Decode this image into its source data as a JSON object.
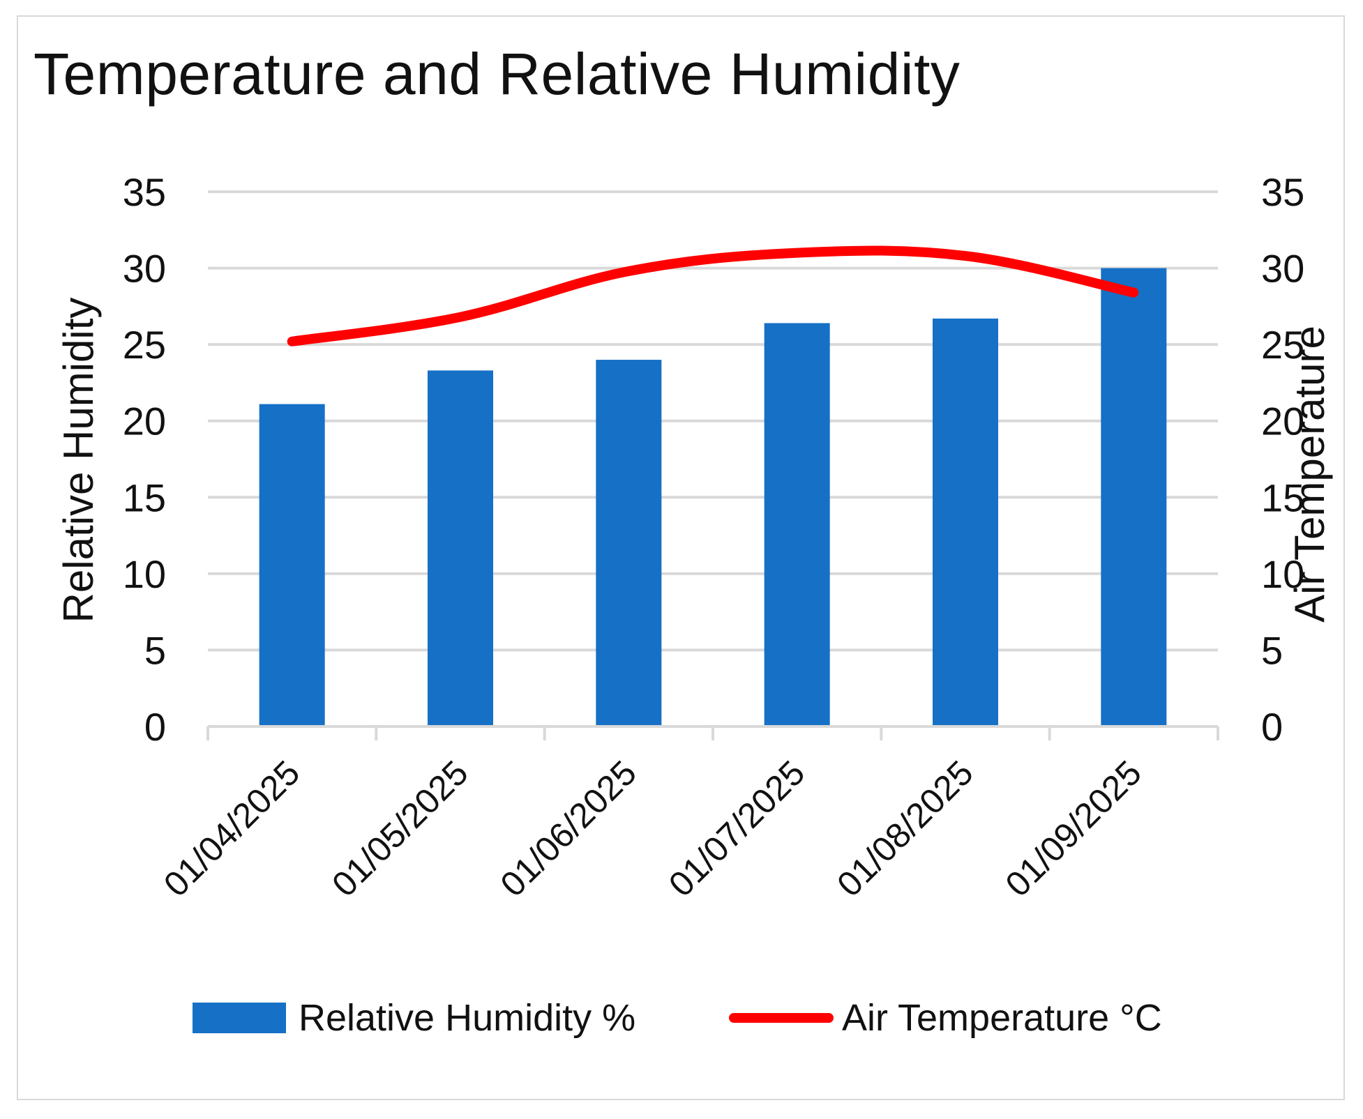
{
  "chart_data": {
    "type": "bar",
    "title": "Temperature and Relative Humidity",
    "categories": [
      "01/04/2025",
      "01/05/2025",
      "01/06/2025",
      "01/07/2025",
      "01/08/2025",
      "01/09/2025"
    ],
    "series": [
      {
        "name": "Relative Humidity %",
        "type": "bar",
        "axis": "left",
        "color": "#1570c6",
        "values": [
          21.1,
          23.3,
          24.0,
          26.4,
          26.7,
          30.0
        ]
      },
      {
        "name": "Air Temperature °C",
        "type": "line",
        "axis": "right",
        "color": "#ff0000",
        "values": [
          25.2,
          26.8,
          29.8,
          31.0,
          30.8,
          28.4
        ]
      }
    ],
    "ylabel": "Relative Humidity",
    "y2label": "Air Temperature",
    "ylim": [
      0,
      35
    ],
    "y2lim": [
      0,
      35
    ],
    "yticks": [
      "0",
      "5",
      "10",
      "15",
      "20",
      "25",
      "30",
      "35"
    ],
    "grid": true,
    "legend": "bottom"
  }
}
